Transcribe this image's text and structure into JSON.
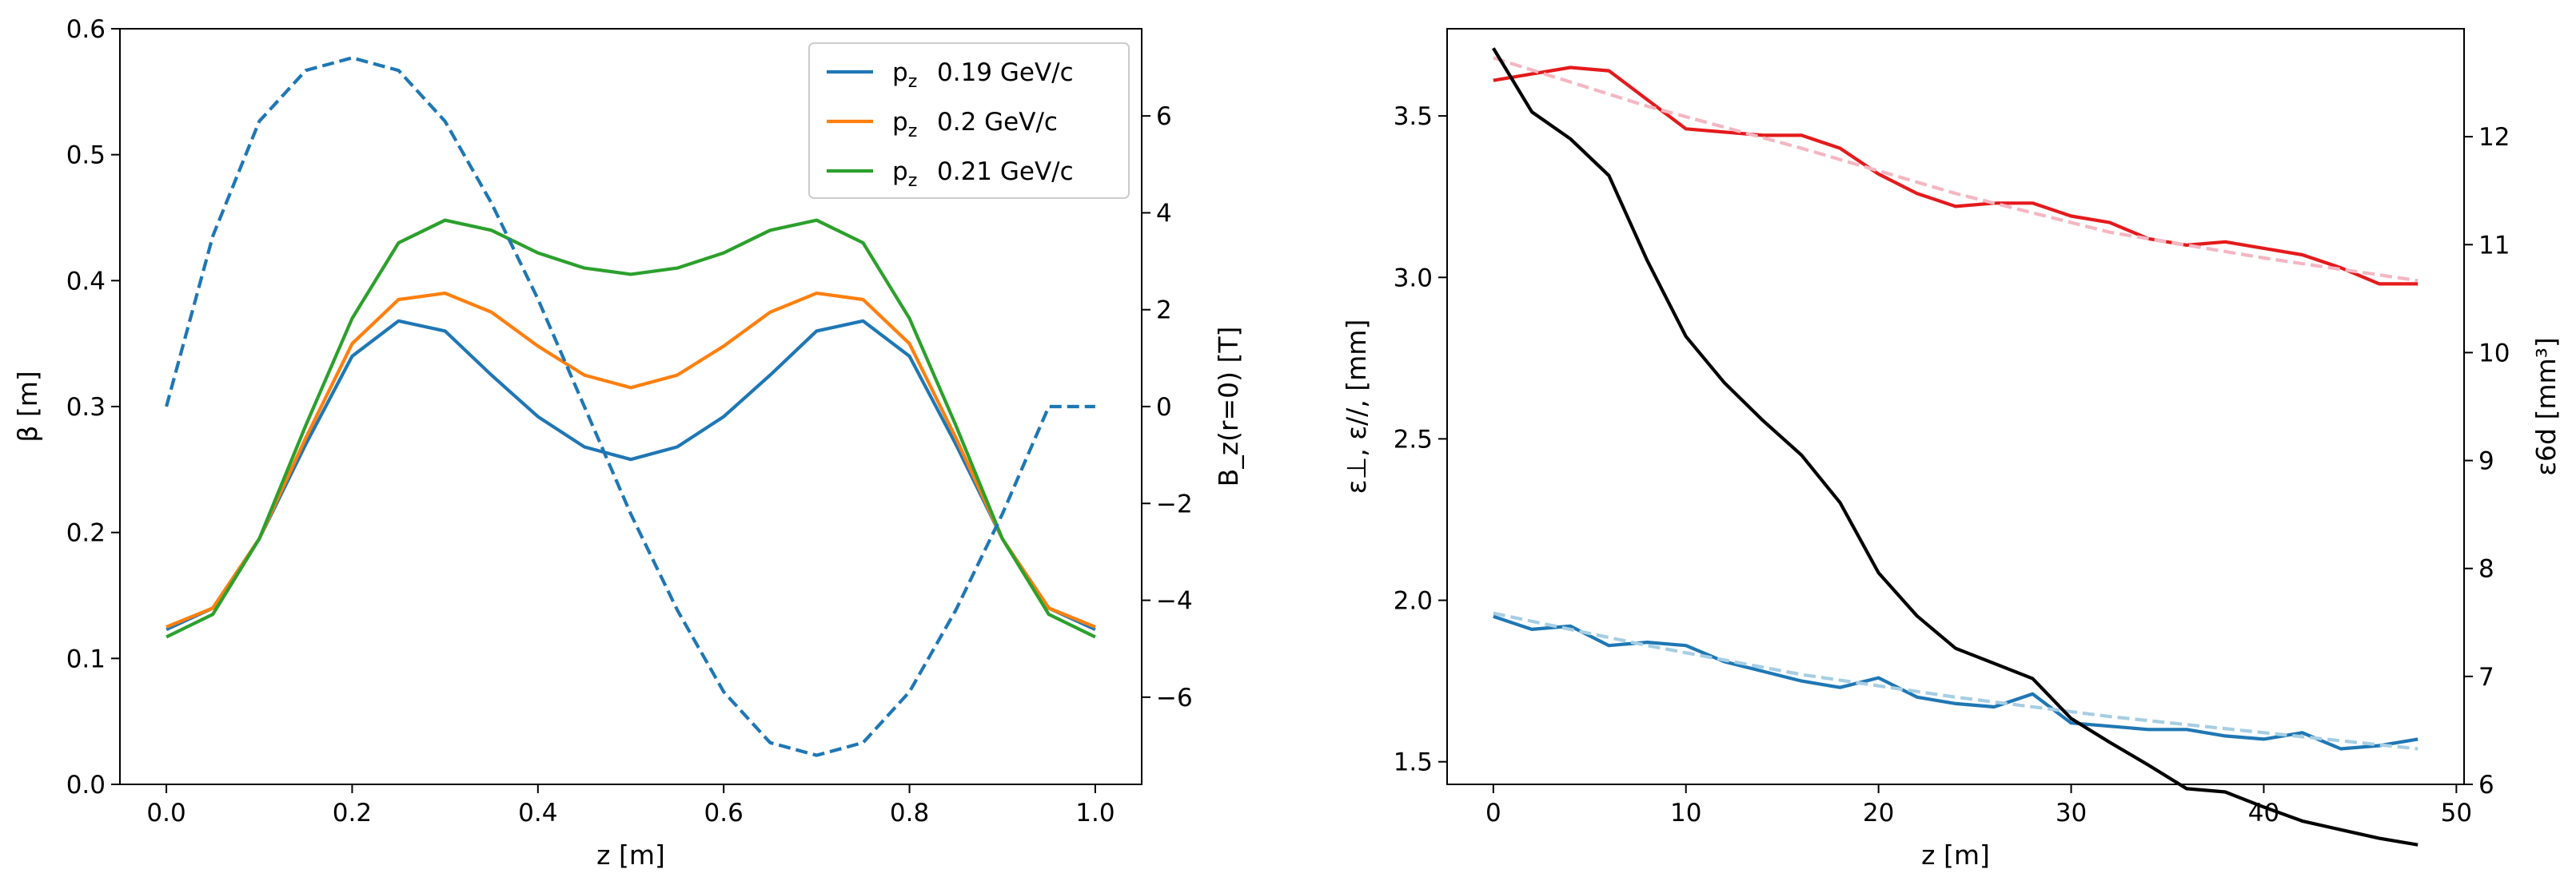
{
  "chart_data": [
    {
      "type": "line",
      "xlabel": "z [m]",
      "ylabel": "β [m]",
      "y2label": "B_z(r=0) [T]",
      "xlim": [
        -0.05,
        1.05
      ],
      "ylim": [
        0.0,
        0.6
      ],
      "y2lim": [
        -7.8,
        7.8
      ],
      "xticks": [
        0.0,
        0.2,
        0.4,
        0.6,
        0.8,
        1.0
      ],
      "xtick_labels": [
        "0.0",
        "0.2",
        "0.4",
        "0.6",
        "0.8",
        "1.0"
      ],
      "yticks": [
        0.0,
        0.1,
        0.2,
        0.3,
        0.4,
        0.5,
        0.6
      ],
      "ytick_labels": [
        "0.0",
        "0.1",
        "0.2",
        "0.3",
        "0.4",
        "0.5",
        "0.6"
      ],
      "y2ticks": [
        -6,
        -4,
        -2,
        0,
        2,
        4,
        6
      ],
      "y2tick_labels": [
        "−6",
        "−4",
        "−2",
        "0",
        "2",
        "4",
        "6"
      ],
      "grid": false,
      "legend_position": "top-right",
      "legend_items": [
        {
          "text": "p",
          "sub": "z",
          "value": "0.19 GeV/c",
          "color": "#1f77b4"
        },
        {
          "text": "p",
          "sub": "z",
          "value": "0.2 GeV/c",
          "color": "#ff7f0e"
        },
        {
          "text": "p",
          "sub": "z",
          "value": "0.21 GeV/c",
          "color": "#2ca02c"
        }
      ],
      "series": [
        {
          "color": "#1f77b4",
          "style": "solid",
          "axis": "left",
          "x": [
            0.0,
            0.05,
            0.1,
            0.15,
            0.2,
            0.25,
            0.3,
            0.35,
            0.4,
            0.45,
            0.5,
            0.55,
            0.6,
            0.65,
            0.7,
            0.75,
            0.8,
            0.85,
            0.9,
            0.95,
            1.0
          ],
          "y": [
            0.123,
            0.14,
            0.195,
            0.27,
            0.34,
            0.368,
            0.36,
            0.325,
            0.292,
            0.268,
            0.258,
            0.268,
            0.292,
            0.325,
            0.36,
            0.368,
            0.34,
            0.27,
            0.195,
            0.14,
            0.123
          ]
        },
        {
          "color": "#ff7f0e",
          "style": "solid",
          "axis": "left",
          "x": [
            0.0,
            0.05,
            0.1,
            0.15,
            0.2,
            0.25,
            0.3,
            0.35,
            0.4,
            0.45,
            0.5,
            0.55,
            0.6,
            0.65,
            0.7,
            0.75,
            0.8,
            0.85,
            0.9,
            0.95,
            1.0
          ],
          "y": [
            0.125,
            0.14,
            0.195,
            0.275,
            0.35,
            0.385,
            0.39,
            0.375,
            0.348,
            0.325,
            0.315,
            0.325,
            0.348,
            0.375,
            0.39,
            0.385,
            0.35,
            0.275,
            0.195,
            0.14,
            0.125
          ]
        },
        {
          "color": "#2ca02c",
          "style": "solid",
          "axis": "left",
          "x": [
            0.0,
            0.05,
            0.1,
            0.15,
            0.2,
            0.25,
            0.3,
            0.35,
            0.4,
            0.45,
            0.5,
            0.55,
            0.6,
            0.65,
            0.7,
            0.75,
            0.8,
            0.85,
            0.9,
            0.95,
            1.0
          ],
          "y": [
            0.117,
            0.135,
            0.195,
            0.285,
            0.37,
            0.43,
            0.448,
            0.44,
            0.422,
            0.41,
            0.405,
            0.41,
            0.422,
            0.44,
            0.448,
            0.43,
            0.37,
            0.285,
            0.195,
            0.135,
            0.117
          ]
        },
        {
          "color": "#1f77b4",
          "style": "dashed",
          "axis": "right",
          "x": [
            0.0,
            0.05,
            0.1,
            0.15,
            0.2,
            0.25,
            0.3,
            0.35,
            0.4,
            0.45,
            0.5,
            0.55,
            0.6,
            0.65,
            0.7,
            0.75,
            0.8,
            0.85,
            0.9,
            0.95,
            1.0
          ],
          "y": [
            0.0,
            3.52,
            5.89,
            6.94,
            7.2,
            6.94,
            5.89,
            4.2,
            2.22,
            0.0,
            -2.22,
            -4.2,
            -5.89,
            -6.94,
            -7.2,
            -6.94,
            -5.89,
            -4.2,
            -2.22,
            0.0,
            0.0
          ]
        }
      ]
    },
    {
      "type": "line",
      "xlabel": "z [m]",
      "ylabel": "ε⊥, ε//, [mm]",
      "y2label": "ε6d [mm³]",
      "xlim": [
        -2.4,
        50.4
      ],
      "ylim": [
        1.43,
        3.77
      ],
      "y2lim": [
        6.0,
        13.0
      ],
      "xticks": [
        0,
        10,
        20,
        30,
        40,
        50
      ],
      "xtick_labels": [
        "0",
        "10",
        "20",
        "30",
        "40",
        "50"
      ],
      "yticks": [
        1.5,
        2.0,
        2.5,
        3.0,
        3.5
      ],
      "ytick_labels": [
        "1.5",
        "2.0",
        "2.5",
        "3.0",
        "3.5"
      ],
      "y2ticks": [
        6,
        7,
        8,
        9,
        10,
        11,
        12
      ],
      "y2tick_labels": [
        "6",
        "7",
        "8",
        "9",
        "10",
        "11",
        "12"
      ],
      "grid": false,
      "series": [
        {
          "color": "#e41a1c",
          "style": "solid",
          "axis": "left",
          "x": [
            0,
            2,
            4,
            6,
            8,
            10,
            12,
            14,
            16,
            18,
            20,
            22,
            24,
            26,
            28,
            30,
            32,
            34,
            36,
            38,
            40,
            42,
            44,
            46,
            48
          ],
          "y": [
            3.61,
            3.63,
            3.65,
            3.64,
            3.55,
            3.46,
            3.45,
            3.44,
            3.44,
            3.4,
            3.32,
            3.26,
            3.22,
            3.23,
            3.23,
            3.19,
            3.17,
            3.12,
            3.1,
            3.11,
            3.09,
            3.07,
            3.03,
            2.98,
            2.98
          ]
        },
        {
          "color": "#f4b6c2",
          "style": "dashed",
          "axis": "left",
          "x": [
            0,
            8,
            16,
            24,
            32,
            40,
            48
          ],
          "y": [
            3.68,
            3.53,
            3.4,
            3.26,
            3.14,
            3.06,
            2.99
          ]
        },
        {
          "color": "#1f77b4",
          "style": "solid",
          "axis": "left",
          "x": [
            0,
            2,
            4,
            6,
            8,
            10,
            12,
            14,
            16,
            18,
            20,
            22,
            24,
            26,
            28,
            30,
            32,
            34,
            36,
            38,
            40,
            42,
            44,
            46,
            48
          ],
          "y": [
            1.95,
            1.91,
            1.92,
            1.86,
            1.87,
            1.86,
            1.81,
            1.78,
            1.75,
            1.73,
            1.76,
            1.7,
            1.68,
            1.67,
            1.71,
            1.62,
            1.61,
            1.6,
            1.6,
            1.58,
            1.57,
            1.59,
            1.54,
            1.55,
            1.57
          ]
        },
        {
          "color": "#a6cee3",
          "style": "dashed",
          "axis": "left",
          "x": [
            0,
            8,
            16,
            24,
            32,
            40,
            48
          ],
          "y": [
            1.96,
            1.86,
            1.77,
            1.7,
            1.64,
            1.59,
            1.54
          ]
        },
        {
          "color": "#000000",
          "style": "solid",
          "axis": "right",
          "x": [
            0,
            2,
            4,
            6,
            8,
            10,
            12,
            14,
            16,
            18,
            20,
            22,
            24,
            26,
            28,
            30,
            32,
            34,
            36,
            38,
            40,
            42,
            44,
            46,
            48
          ],
          "y": [
            12.82,
            12.23,
            11.98,
            11.64,
            10.85,
            10.15,
            9.72,
            9.37,
            9.05,
            8.61,
            7.96,
            7.56,
            7.26,
            7.12,
            6.98,
            6.61,
            6.39,
            6.18,
            5.96,
            5.93,
            5.79,
            5.66,
            5.58,
            5.5,
            5.44
          ]
        }
      ]
    }
  ]
}
